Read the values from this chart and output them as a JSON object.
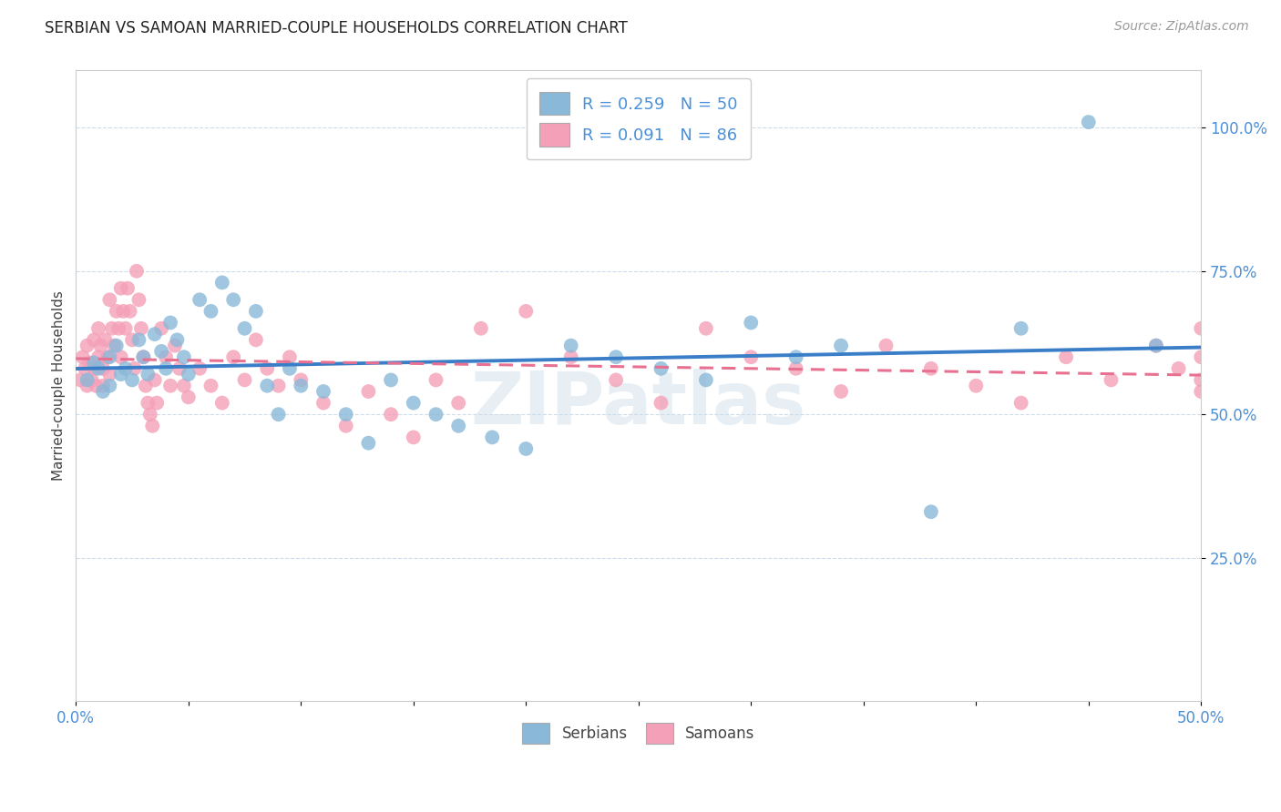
{
  "title": "SERBIAN VS SAMOAN MARRIED-COUPLE HOUSEHOLDS CORRELATION CHART",
  "source": "Source: ZipAtlas.com",
  "ylabel": "Married-couple Households",
  "ytick_vals": [
    0.25,
    0.5,
    0.75,
    1.0
  ],
  "ytick_labels": [
    "25.0%",
    "50.0%",
    "75.0%",
    "100.0%"
  ],
  "xtick_vals": [
    0.0,
    0.05,
    0.1,
    0.15,
    0.2,
    0.25,
    0.3,
    0.35,
    0.4,
    0.45,
    0.5
  ],
  "xtick_labels": [
    "0.0%",
    "",
    "",
    "",
    "",
    "",
    "",
    "",
    "",
    "",
    "50.0%"
  ],
  "xlim": [
    0.0,
    0.5
  ],
  "ylim": [
    0.0,
    1.1
  ],
  "legend_serbian": "R = 0.259   N = 50",
  "legend_samoan": "R = 0.091   N = 86",
  "serbian_color": "#8ab8d8",
  "samoan_color": "#f4a0b8",
  "serbian_line_color": "#3a7ec8",
  "samoan_line_color": "#e87090",
  "watermark": "ZIPatlas",
  "serbian_x": [
    0.005,
    0.008,
    0.01,
    0.012,
    0.015,
    0.015,
    0.018,
    0.02,
    0.022,
    0.025,
    0.028,
    0.03,
    0.032,
    0.035,
    0.038,
    0.04,
    0.042,
    0.045,
    0.048,
    0.05,
    0.055,
    0.06,
    0.065,
    0.07,
    0.075,
    0.08,
    0.085,
    0.09,
    0.095,
    0.1,
    0.11,
    0.12,
    0.13,
    0.14,
    0.15,
    0.16,
    0.17,
    0.185,
    0.2,
    0.22,
    0.24,
    0.26,
    0.28,
    0.3,
    0.32,
    0.34,
    0.38,
    0.42,
    0.45,
    0.48
  ],
  "serbian_y": [
    0.56,
    0.59,
    0.58,
    0.54,
    0.6,
    0.55,
    0.62,
    0.57,
    0.58,
    0.56,
    0.63,
    0.6,
    0.57,
    0.64,
    0.61,
    0.58,
    0.66,
    0.63,
    0.6,
    0.57,
    0.7,
    0.68,
    0.73,
    0.7,
    0.65,
    0.68,
    0.55,
    0.5,
    0.58,
    0.55,
    0.54,
    0.5,
    0.45,
    0.56,
    0.52,
    0.5,
    0.48,
    0.46,
    0.44,
    0.62,
    0.6,
    0.58,
    0.56,
    0.66,
    0.6,
    0.62,
    0.33,
    0.65,
    1.01,
    0.62
  ],
  "samoan_x": [
    0.002,
    0.003,
    0.004,
    0.005,
    0.005,
    0.006,
    0.007,
    0.008,
    0.008,
    0.009,
    0.01,
    0.01,
    0.011,
    0.012,
    0.012,
    0.013,
    0.014,
    0.015,
    0.015,
    0.016,
    0.017,
    0.018,
    0.019,
    0.02,
    0.02,
    0.021,
    0.022,
    0.023,
    0.024,
    0.025,
    0.026,
    0.027,
    0.028,
    0.029,
    0.03,
    0.031,
    0.032,
    0.033,
    0.034,
    0.035,
    0.036,
    0.038,
    0.04,
    0.042,
    0.044,
    0.046,
    0.048,
    0.05,
    0.055,
    0.06,
    0.065,
    0.07,
    0.075,
    0.08,
    0.085,
    0.09,
    0.095,
    0.1,
    0.11,
    0.12,
    0.13,
    0.14,
    0.15,
    0.16,
    0.17,
    0.18,
    0.2,
    0.22,
    0.24,
    0.26,
    0.28,
    0.3,
    0.32,
    0.34,
    0.36,
    0.38,
    0.4,
    0.42,
    0.44,
    0.46,
    0.48,
    0.49,
    0.5,
    0.5,
    0.5,
    0.5
  ],
  "samoan_y": [
    0.56,
    0.6,
    0.58,
    0.55,
    0.62,
    0.59,
    0.56,
    0.63,
    0.58,
    0.55,
    0.6,
    0.65,
    0.62,
    0.58,
    0.55,
    0.63,
    0.6,
    0.57,
    0.7,
    0.65,
    0.62,
    0.68,
    0.65,
    0.6,
    0.72,
    0.68,
    0.65,
    0.72,
    0.68,
    0.63,
    0.58,
    0.75,
    0.7,
    0.65,
    0.6,
    0.55,
    0.52,
    0.5,
    0.48,
    0.56,
    0.52,
    0.65,
    0.6,
    0.55,
    0.62,
    0.58,
    0.55,
    0.53,
    0.58,
    0.55,
    0.52,
    0.6,
    0.56,
    0.63,
    0.58,
    0.55,
    0.6,
    0.56,
    0.52,
    0.48,
    0.54,
    0.5,
    0.46,
    0.56,
    0.52,
    0.65,
    0.68,
    0.6,
    0.56,
    0.52,
    0.65,
    0.6,
    0.58,
    0.54,
    0.62,
    0.58,
    0.55,
    0.52,
    0.6,
    0.56,
    0.62,
    0.58,
    0.54,
    0.65,
    0.6,
    0.56
  ]
}
